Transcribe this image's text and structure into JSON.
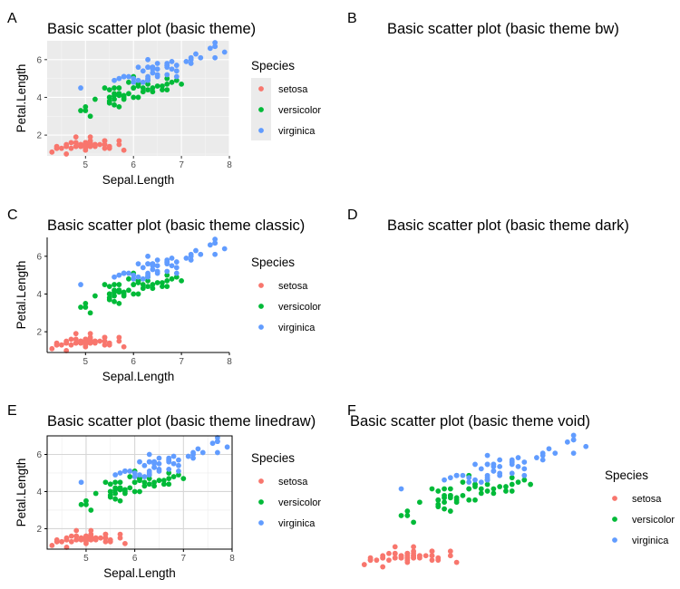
{
  "chart_data": {
    "type": "scatter",
    "xlabel": "Sepal.Length",
    "ylabel": "Petal.Length",
    "xlim": [
      4.2,
      8.0
    ],
    "ylim": [
      0.9,
      7.0
    ],
    "xticks": [
      5,
      6,
      7,
      8
    ],
    "yticks": [
      2,
      4,
      6
    ],
    "legend_title": "Species",
    "series": [
      {
        "name": "setosa",
        "color": "#F8766D",
        "x": [
          5.1,
          4.9,
          4.7,
          4.6,
          5.0,
          5.4,
          4.6,
          5.0,
          4.4,
          4.9,
          5.4,
          4.8,
          4.8,
          4.3,
          5.8,
          5.7,
          5.4,
          5.1,
          5.7,
          5.1,
          5.4,
          5.1,
          4.6,
          5.1,
          4.8,
          5.0,
          5.0,
          5.2,
          5.2,
          4.7,
          4.8,
          5.4,
          5.2,
          5.5,
          4.9,
          5.0,
          5.5,
          4.9,
          4.4,
          5.1,
          5.0,
          4.5,
          4.4,
          5.0,
          5.1,
          4.8,
          5.1,
          4.6,
          5.3,
          5.0
        ],
        "y": [
          1.4,
          1.4,
          1.3,
          1.5,
          1.4,
          1.7,
          1.4,
          1.5,
          1.4,
          1.5,
          1.5,
          1.6,
          1.4,
          1.1,
          1.2,
          1.5,
          1.3,
          1.4,
          1.7,
          1.5,
          1.7,
          1.5,
          1.0,
          1.7,
          1.9,
          1.6,
          1.6,
          1.5,
          1.4,
          1.6,
          1.6,
          1.5,
          1.5,
          1.4,
          1.5,
          1.2,
          1.3,
          1.4,
          1.3,
          1.5,
          1.3,
          1.3,
          1.3,
          1.6,
          1.9,
          1.4,
          1.6,
          1.4,
          1.5,
          1.4
        ]
      },
      {
        "name": "versicolor",
        "color": "#00BA38",
        "x": [
          7.0,
          6.4,
          6.9,
          5.5,
          6.5,
          5.7,
          6.3,
          4.9,
          6.6,
          5.2,
          5.0,
          5.9,
          6.0,
          6.1,
          5.6,
          6.7,
          5.6,
          5.8,
          6.2,
          5.6,
          5.9,
          6.1,
          6.3,
          6.1,
          6.4,
          6.6,
          6.8,
          6.7,
          6.0,
          5.7,
          5.5,
          5.5,
          5.8,
          6.0,
          5.4,
          6.0,
          6.7,
          6.3,
          5.6,
          5.5,
          5.5,
          6.1,
          5.8,
          5.0,
          5.6,
          5.7,
          5.7,
          6.2,
          5.1,
          5.7
        ],
        "y": [
          4.7,
          4.5,
          4.9,
          4.0,
          4.6,
          4.5,
          4.7,
          3.3,
          4.6,
          3.9,
          3.5,
          4.2,
          4.0,
          4.7,
          3.6,
          4.4,
          4.5,
          4.1,
          4.5,
          3.9,
          4.8,
          4.0,
          4.9,
          4.7,
          4.3,
          4.4,
          4.8,
          5.0,
          4.5,
          3.5,
          3.8,
          3.7,
          3.9,
          5.1,
          4.5,
          4.5,
          4.7,
          4.4,
          4.1,
          4.0,
          4.4,
          4.6,
          4.0,
          3.3,
          4.2,
          4.2,
          4.2,
          4.3,
          3.0,
          4.1
        ]
      },
      {
        "name": "virginica",
        "color": "#619CFF",
        "x": [
          6.3,
          5.8,
          7.1,
          6.3,
          6.5,
          7.6,
          4.9,
          7.3,
          6.7,
          7.2,
          6.5,
          6.4,
          6.8,
          5.7,
          5.8,
          6.4,
          6.5,
          7.7,
          7.7,
          6.0,
          6.9,
          5.6,
          7.7,
          6.3,
          6.7,
          7.2,
          6.2,
          6.1,
          6.4,
          7.2,
          7.4,
          7.9,
          6.4,
          6.3,
          6.1,
          7.7,
          6.3,
          6.4,
          6.0,
          6.9,
          6.7,
          6.9,
          5.8,
          6.8,
          6.7,
          6.7,
          6.3,
          6.5,
          6.2,
          5.9
        ],
        "y": [
          6.0,
          5.1,
          5.9,
          5.6,
          5.8,
          6.6,
          4.5,
          6.3,
          5.8,
          6.1,
          5.1,
          5.3,
          5.5,
          5.0,
          5.1,
          5.3,
          5.5,
          6.7,
          6.9,
          5.0,
          5.7,
          4.9,
          6.7,
          4.9,
          5.7,
          6.0,
          4.8,
          4.9,
          5.6,
          5.8,
          6.1,
          6.4,
          5.6,
          5.1,
          5.6,
          6.1,
          5.6,
          5.5,
          4.8,
          5.4,
          5.6,
          5.1,
          5.1,
          5.9,
          5.7,
          5.2,
          5.0,
          5.2,
          5.4,
          5.1
        ]
      }
    ],
    "panels": [
      {
        "tag": "A",
        "title": "Basic scatter plot (basic theme)",
        "theme": "grey"
      },
      {
        "tag": "B",
        "title": "Basic scatter plot (basic theme bw)",
        "theme": "bw"
      },
      {
        "tag": "C",
        "title": "Basic scatter plot (basic theme classic)",
        "theme": "classic"
      },
      {
        "tag": "D",
        "title": "Basic scatter plot (basic theme dark)",
        "theme": "dark"
      },
      {
        "tag": "E",
        "title": "Basic scatter plot (basic theme linedraw)",
        "theme": "linedraw"
      },
      {
        "tag": "F",
        "title": "Basic scatter plot (basic theme void)",
        "theme": "void"
      }
    ]
  }
}
